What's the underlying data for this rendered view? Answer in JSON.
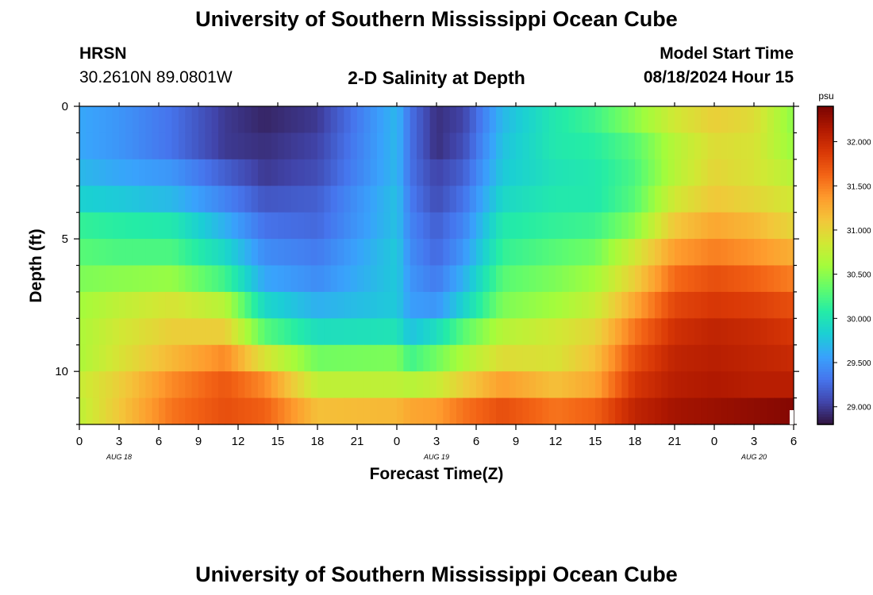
{
  "header": {
    "title": "University of Southern Mississippi Ocean Cube",
    "station": "HRSN",
    "coords": "30.2610N  89.0801W",
    "plot_title": "2-D Salinity at Depth",
    "start_label": "Model Start Time",
    "start_value": "08/18/2024 Hour 15"
  },
  "footer": {
    "title": "University of Southern Mississippi Ocean Cube"
  },
  "chart_data": {
    "type": "heatmap",
    "title": "2-D Salinity at Depth",
    "xlabel": "Forecast Time(Z)",
    "ylabel": "Depth (ft)",
    "x_tick_labels": [
      "0",
      "3",
      "6",
      "9",
      "12",
      "15",
      "18",
      "21",
      "0",
      "3",
      "6",
      "9",
      "12",
      "15",
      "18",
      "21",
      "0",
      "3",
      "6"
    ],
    "x_date_labels": [
      {
        "label": "AUG 18",
        "at_hours": 18
      },
      {
        "label": "AUG 19",
        "at_hours": 42
      },
      {
        "label": "AUG 20",
        "at_hours": 66
      }
    ],
    "x_range_hours": [
      0,
      54
    ],
    "y_ticks": [
      0,
      5,
      10
    ],
    "y_range_ft": [
      0,
      12
    ],
    "depth_levels_ft": [
      0.5,
      1.5,
      2.5,
      3.5,
      4.5,
      5.5,
      6.5,
      7.5,
      8.5,
      9.5,
      10.5,
      11.5
    ],
    "colorbar": {
      "unit": "psu",
      "ticks": [
        "29.000",
        "29.500",
        "30.000",
        "30.500",
        "31.000",
        "31.500",
        "32.000"
      ],
      "tick_values": [
        29.0,
        29.5,
        30.0,
        30.5,
        31.0,
        31.5,
        32.0
      ],
      "range": [
        28.8,
        32.4
      ]
    },
    "salinity_keyframes": {
      "hours": [
        0,
        3,
        7,
        11,
        14,
        18,
        24,
        25,
        27,
        29,
        32,
        36,
        39,
        42,
        45,
        48,
        51,
        54
      ],
      "rows": [
        [
          29.6,
          29.5,
          29.3,
          29.0,
          28.9,
          29.0,
          29.7,
          29.3,
          28.95,
          29.05,
          29.7,
          30.05,
          30.2,
          30.5,
          30.85,
          31.05,
          30.95,
          30.5
        ],
        [
          29.6,
          29.5,
          29.3,
          29.0,
          28.95,
          29.05,
          29.7,
          29.3,
          28.95,
          29.1,
          29.75,
          30.05,
          30.1,
          30.3,
          30.7,
          30.95,
          30.9,
          30.55
        ],
        [
          29.7,
          29.6,
          29.5,
          29.2,
          29.0,
          29.1,
          29.7,
          29.3,
          29.05,
          29.2,
          29.8,
          30.0,
          30.05,
          30.25,
          30.7,
          31.0,
          30.9,
          30.7
        ],
        [
          29.85,
          29.8,
          29.7,
          29.4,
          29.15,
          29.2,
          29.75,
          29.35,
          29.1,
          29.3,
          29.9,
          30.05,
          30.05,
          30.3,
          30.85,
          31.1,
          31.0,
          30.85
        ],
        [
          30.15,
          30.1,
          30.05,
          29.65,
          29.3,
          29.25,
          29.75,
          29.4,
          29.2,
          29.4,
          30.05,
          30.15,
          30.2,
          30.5,
          31.1,
          31.3,
          31.2,
          31.0
        ],
        [
          30.3,
          30.25,
          30.25,
          29.9,
          29.45,
          29.35,
          29.8,
          29.45,
          29.25,
          29.5,
          30.15,
          30.3,
          30.4,
          30.85,
          31.35,
          31.5,
          31.4,
          31.25
        ],
        [
          30.45,
          30.5,
          30.55,
          30.2,
          29.6,
          29.45,
          29.8,
          29.5,
          29.35,
          29.65,
          30.3,
          30.45,
          30.6,
          31.05,
          31.6,
          31.75,
          31.65,
          31.5
        ],
        [
          30.6,
          30.75,
          30.9,
          30.7,
          29.9,
          29.65,
          29.8,
          29.55,
          29.5,
          29.85,
          30.45,
          30.6,
          30.8,
          31.3,
          31.8,
          31.9,
          31.85,
          31.75
        ],
        [
          30.65,
          30.85,
          31.05,
          31.05,
          30.3,
          29.95,
          30.0,
          29.75,
          29.95,
          30.3,
          30.7,
          30.85,
          31.0,
          31.55,
          31.95,
          32.05,
          32.0,
          31.9
        ],
        [
          30.65,
          30.9,
          31.2,
          31.45,
          30.9,
          30.4,
          30.45,
          30.2,
          30.4,
          30.65,
          30.95,
          30.9,
          31.15,
          31.75,
          32.05,
          32.1,
          32.05,
          32.0
        ],
        [
          30.8,
          31.05,
          31.45,
          31.7,
          31.45,
          30.75,
          30.75,
          30.7,
          30.8,
          31.05,
          31.35,
          31.15,
          31.3,
          31.9,
          32.1,
          32.15,
          32.1,
          32.1
        ],
        [
          30.75,
          31.1,
          31.55,
          31.75,
          31.65,
          31.15,
          31.2,
          31.3,
          31.35,
          31.55,
          31.75,
          31.55,
          31.65,
          32.05,
          32.2,
          32.25,
          32.3,
          32.35
        ]
      ]
    },
    "colormap": [
      "#30123b",
      "#4145ab",
      "#4675ed",
      "#39a2fc",
      "#1bcfd4",
      "#24eca6",
      "#61fc6c",
      "#a4fc3b",
      "#d1e834",
      "#f3c63a",
      "#fe9b2d",
      "#f36315",
      "#d93806",
      "#b11901",
      "#7a0402"
    ]
  }
}
